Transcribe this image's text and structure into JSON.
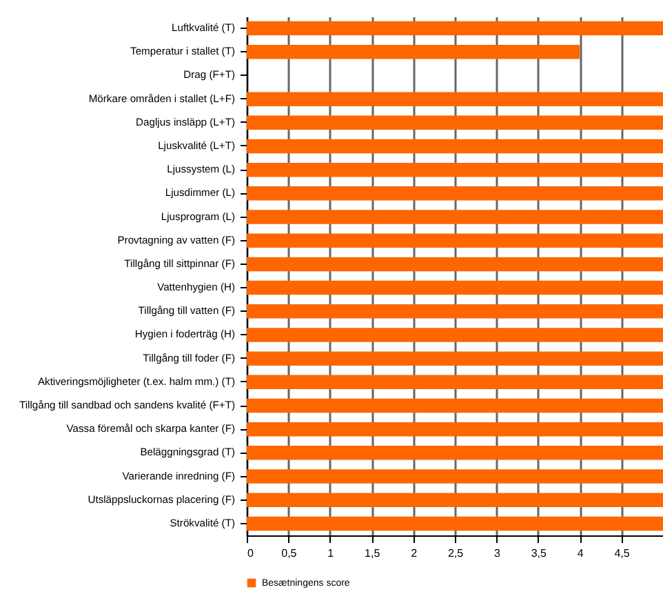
{
  "chart_data": {
    "type": "bar",
    "orientation": "horizontal",
    "categories": [
      "Luftkvalité (T)",
      "Temperatur i stallet (T)",
      "Drag (F+T)",
      "Mörkare områden i stallet (L+F)",
      "Dagljus insläpp (L+T)",
      "Ljuskvalité (L+T)",
      "Ljussystem (L)",
      "Ljusdimmer (L)",
      "Ljusprogram (L)",
      "Provtagning av vatten (F)",
      "Tillgång till sittpinnar (F)",
      "Vattenhygien (H)",
      "Tillgång till vatten (F)",
      "Hygien i foderträg (H)",
      "Tillgång till foder (F)",
      "Aktiveringsmöjligheter (t.ex. halm mm.) (T)",
      "Tillgång till sandbad och sandens kvalité (F+T)",
      "Vassa föremål och skarpa kanter (F)",
      "Beläggningsgrad (T)",
      "Varierande inredning (F)",
      "Utsläppsluckornas placering (F)",
      "Strökvalité (T)"
    ],
    "series": [
      {
        "name": "Besætningens score",
        "color": "#ff6600",
        "values": [
          5,
          4,
          0,
          5,
          5,
          5,
          5,
          5,
          5,
          5,
          5,
          5,
          5,
          5,
          5,
          5,
          5,
          5,
          5,
          5,
          5,
          5
        ]
      }
    ],
    "xlim": [
      0,
      5
    ],
    "xticks": [
      0,
      {
        "value": 0.5,
        "label": "0,5"
      },
      1,
      {
        "value": 1.5,
        "label": "1,5"
      },
      2,
      {
        "value": 2.5,
        "label": "2,5"
      },
      3,
      {
        "value": 3.5,
        "label": "3,5"
      },
      4,
      {
        "value": 4.5,
        "label": "4,5"
      }
    ],
    "grid": "x",
    "legend": "bottom"
  }
}
